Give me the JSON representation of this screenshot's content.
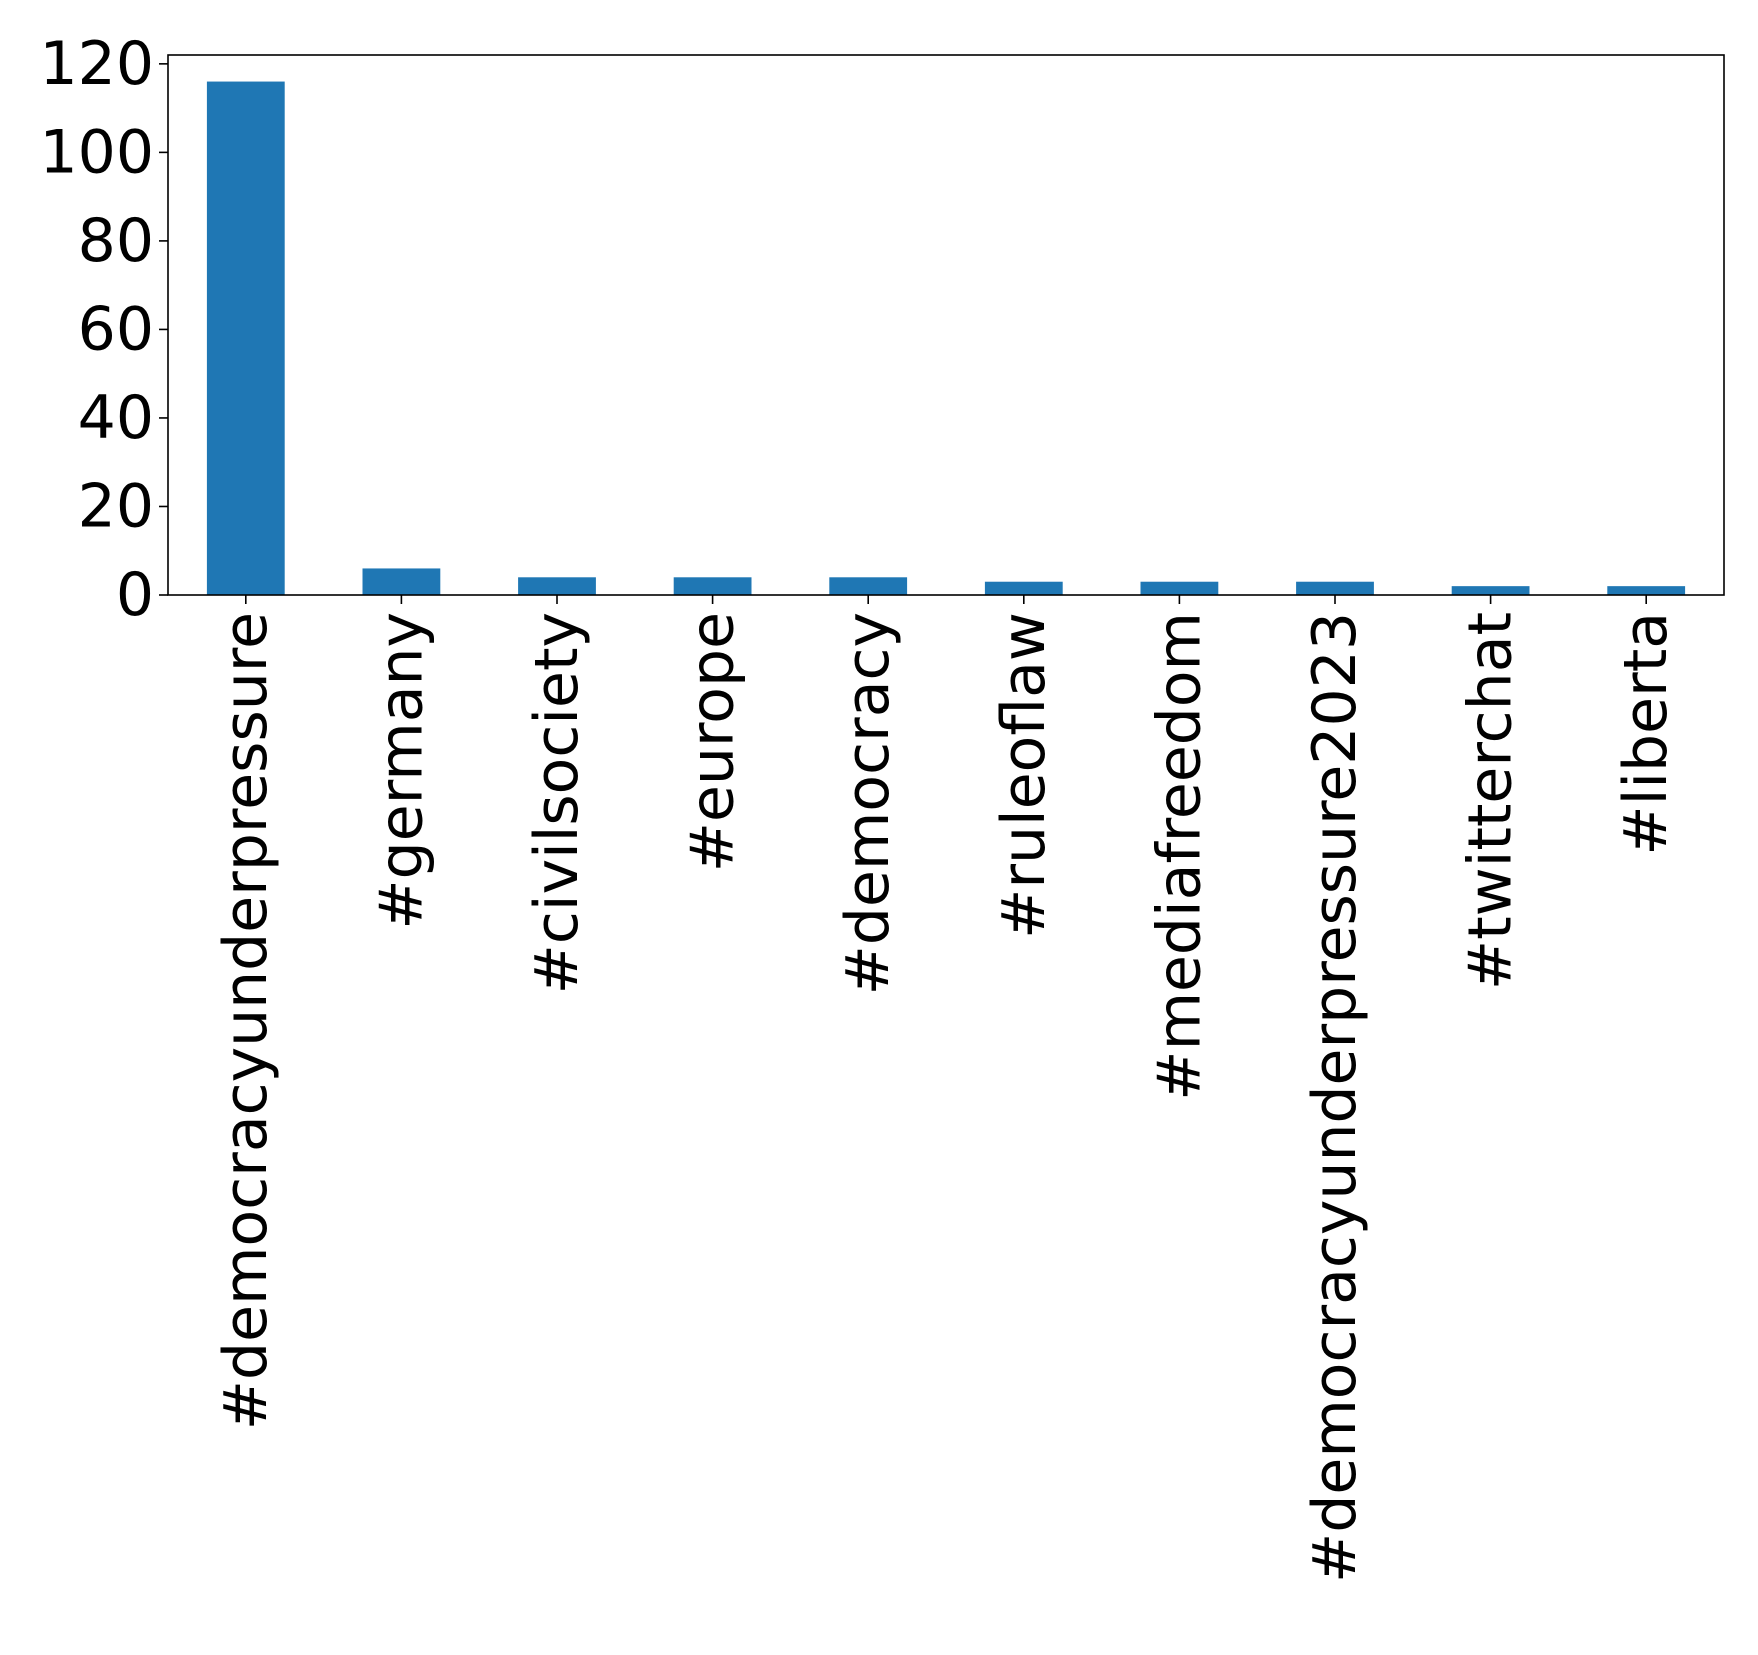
{
  "chart_data": {
    "type": "bar",
    "title": "",
    "xlabel": "",
    "ylabel": "",
    "categories": [
      "#democracyunderpressure",
      "#germany",
      "#civilsociety",
      "#europe",
      "#democracy",
      "#ruleoflaw",
      "#mediafreedom",
      "#democracyunderpressure2023",
      "#twitterchat",
      "#liberta"
    ],
    "values": [
      116,
      6,
      4,
      4,
      4,
      3,
      3,
      3,
      2,
      2
    ],
    "ylim": [
      0,
      122
    ],
    "yticks": [
      0,
      20,
      40,
      60,
      80,
      100,
      120
    ],
    "ytick_labels": [
      "0",
      "20",
      "40",
      "60",
      "80",
      "100",
      "120"
    ],
    "bar_color": "#1f77b4",
    "grid": false,
    "legend": "none"
  }
}
